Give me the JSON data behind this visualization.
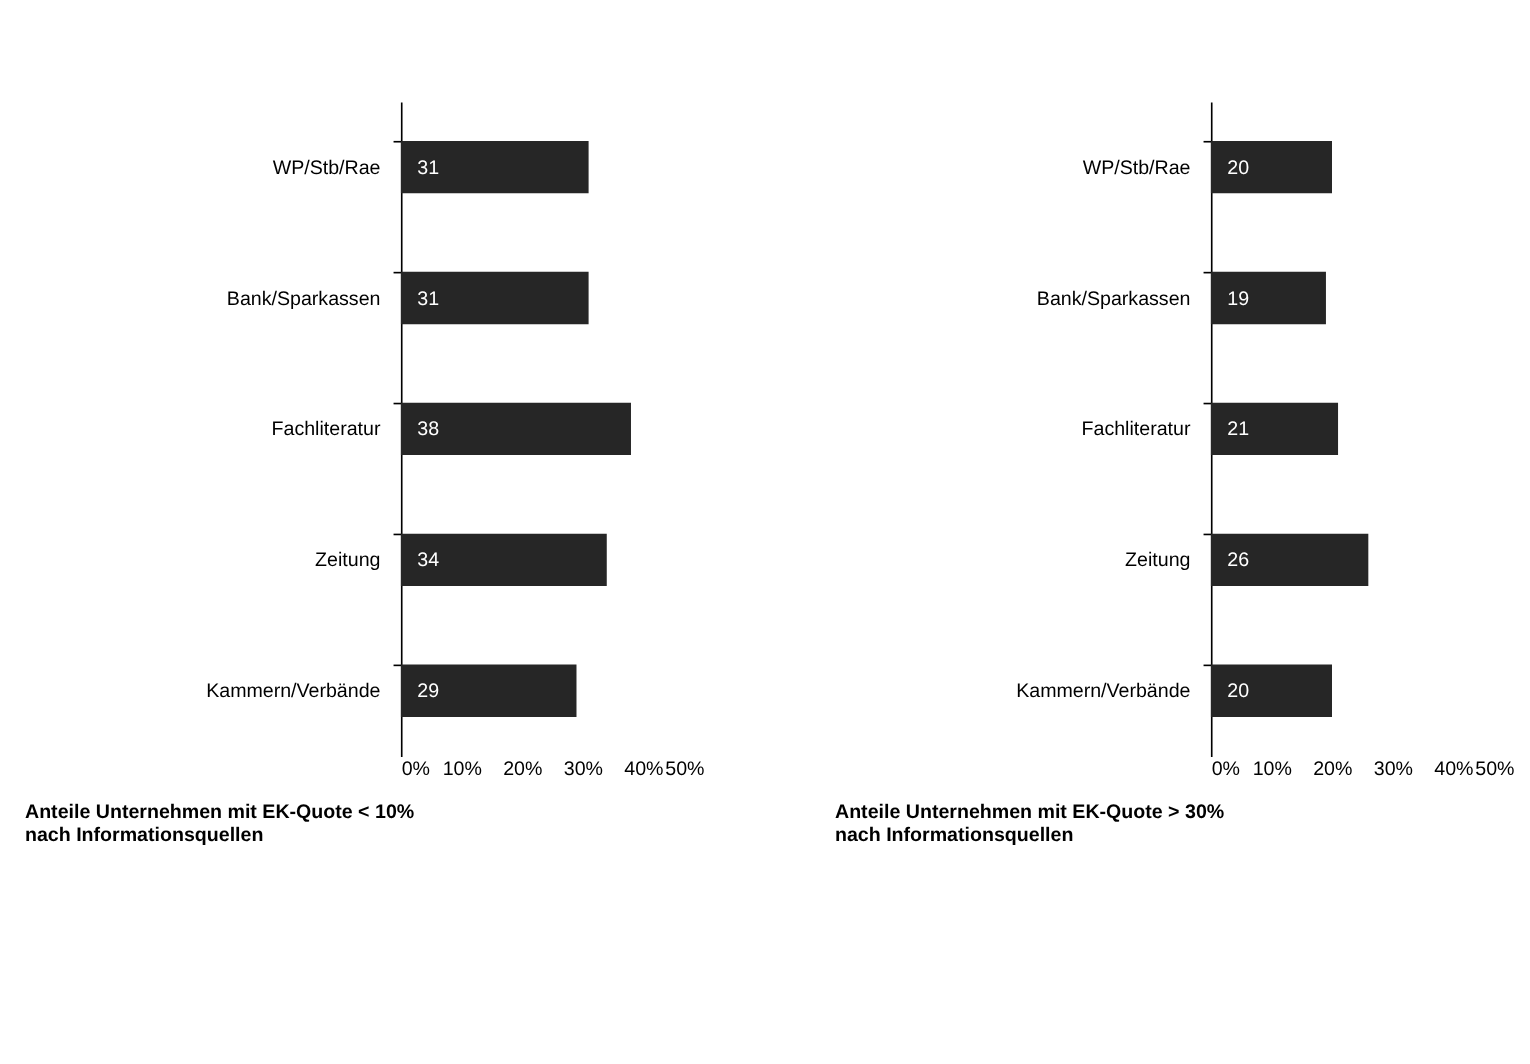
{
  "chart_data": [
    {
      "type": "bar",
      "orientation": "horizontal",
      "title": "Anteile Unternehmen mit EK-Quote < 10%\nnach Informationsquellen",
      "categories": [
        "WP/Stb/Rae",
        "Bank/Sparkassen",
        "Fachliteratur",
        "Zeitung",
        "Kammern/Verbände"
      ],
      "values": [
        31,
        31,
        38,
        34,
        29
      ],
      "color": "#262626",
      "data_labels": true,
      "xlim": [
        0,
        50
      ],
      "xticks": [
        {
          "value": 0,
          "label": "0%"
        },
        {
          "value": 10,
          "label": "10%"
        },
        {
          "value": 20,
          "label": "20%"
        },
        {
          "value": 30,
          "label": "30%"
        },
        {
          "value": 40,
          "label": "40%"
        },
        {
          "value": 50,
          "label": "50%"
        }
      ],
      "grid": false,
      "legend": false
    },
    {
      "type": "bar",
      "orientation": "horizontal",
      "title": "Anteile Unternehmen mit EK-Quote > 30%\nnach Informationsquellen",
      "categories": [
        "WP/Stb/Rae",
        "Bank/Sparkassen",
        "Fachliteratur",
        "Zeitung",
        "Kammern/Verbände"
      ],
      "values": [
        20,
        19,
        21,
        26,
        20
      ],
      "color": "#262626",
      "data_labels": true,
      "xlim": [
        0,
        50
      ],
      "xticks": [
        {
          "value": 0,
          "label": "0%"
        },
        {
          "value": 10,
          "label": "10%"
        },
        {
          "value": 20,
          "label": "20%"
        },
        {
          "value": 30,
          "label": "30%"
        },
        {
          "value": 40,
          "label": "40%"
        },
        {
          "value": 50,
          "label": "50%"
        }
      ],
      "grid": false,
      "legend": false
    }
  ]
}
